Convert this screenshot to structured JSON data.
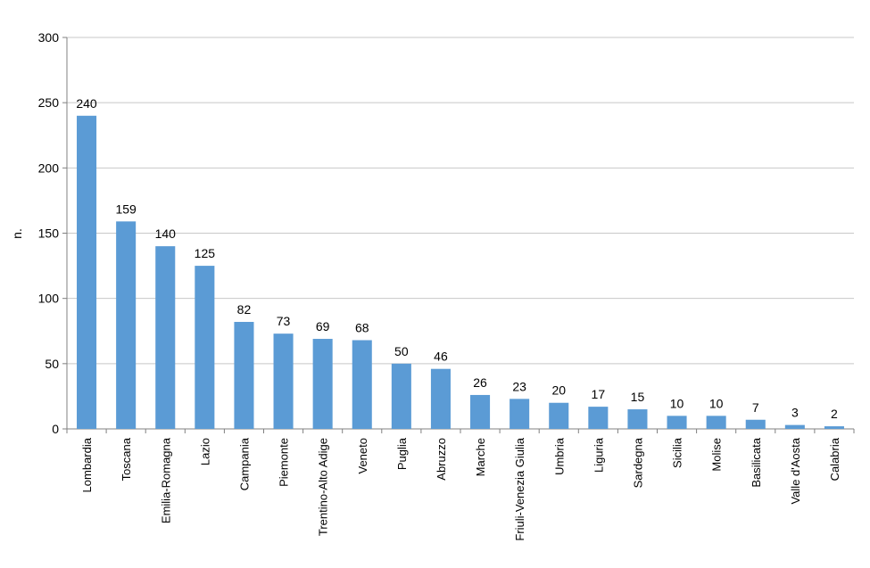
{
  "chart_data": {
    "type": "bar",
    "title": "",
    "xlabel": "",
    "ylabel": "n.",
    "ylim": [
      0,
      300
    ],
    "yticks": [
      0,
      50,
      100,
      150,
      200,
      250,
      300
    ],
    "grid": true,
    "legend": "none",
    "bar_color": "#5b9bd5",
    "grid_color": "#c8c8c8",
    "axis_color": "#808080",
    "categories": [
      "Lombardia",
      "Toscana",
      "Emilia-Romagna",
      "Lazio",
      "Campania",
      "Piemonte",
      "Trentino-Alto Adige",
      "Veneto",
      "Puglia",
      "Abruzzo",
      "Marche",
      "Friuli-Venezia Giulia",
      "Umbria",
      "Liguria",
      "Sardegna",
      "Sicilia",
      "Molise",
      "Basilicata",
      "Valle d'Aosta",
      "Calabria"
    ],
    "values": [
      240,
      159,
      140,
      125,
      82,
      73,
      69,
      68,
      50,
      46,
      26,
      23,
      20,
      17,
      15,
      10,
      10,
      7,
      3,
      2
    ]
  }
}
